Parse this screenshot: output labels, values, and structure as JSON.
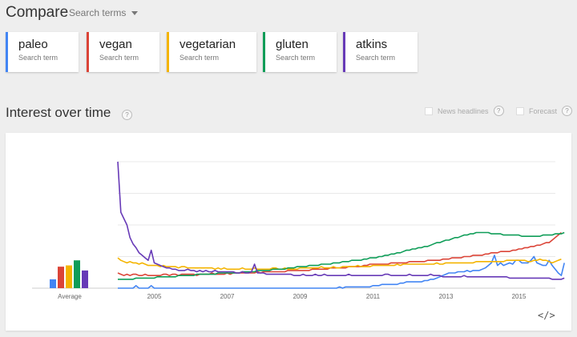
{
  "header": {
    "title": "Compare",
    "search_terms_label": "Search terms"
  },
  "terms": [
    {
      "term": "paleo",
      "sub": "Search term",
      "color": "#4285f4"
    },
    {
      "term": "vegan",
      "sub": "Search term",
      "color": "#db4437"
    },
    {
      "term": "vegetarian",
      "sub": "Search term",
      "color": "#f4b400"
    },
    {
      "term": "gluten",
      "sub": "Search term",
      "color": "#0f9d58"
    },
    {
      "term": "atkins",
      "sub": "Search term",
      "color": "#673ab7"
    }
  ],
  "section": {
    "title": "Interest over time",
    "help": "?",
    "news_label": "News headlines",
    "forecast_label": "Forecast",
    "embed_label": "</>"
  },
  "chart_data": {
    "type": "line",
    "x_start": 2004.0,
    "x_step": 0.0833,
    "xlim": [
      2004.0,
      2016.0
    ],
    "ylim": [
      0,
      100
    ],
    "grid": true,
    "x_ticks": [
      "2005",
      "2007",
      "2009",
      "2011",
      "2013",
      "2015"
    ],
    "x_tick_values": [
      2005,
      2007,
      2009,
      2011,
      2013,
      2015
    ],
    "average_label": "Average",
    "averages": [
      7,
      17,
      18,
      22,
      14
    ],
    "series": [
      {
        "name": "paleo",
        "values": [
          0,
          0,
          0,
          0,
          0,
          0,
          2,
          0,
          0,
          0,
          0,
          2,
          0,
          0,
          0,
          0,
          0,
          0,
          0,
          0,
          0,
          0,
          0,
          0,
          0,
          0,
          0,
          0,
          0,
          0,
          0,
          0,
          0,
          0,
          0,
          0,
          0,
          0,
          0,
          0,
          0,
          0,
          0,
          0,
          0,
          0,
          0,
          0,
          0,
          0,
          0,
          0,
          0,
          0,
          0,
          0,
          0,
          0,
          0,
          0,
          0,
          0,
          0,
          0,
          0,
          0,
          0,
          0,
          0,
          0,
          0,
          0,
          0,
          1,
          0,
          1,
          1,
          1,
          1,
          1,
          1,
          1,
          1,
          1,
          2,
          2,
          2,
          3,
          3,
          3,
          3,
          3,
          3,
          4,
          4,
          5,
          5,
          5,
          5,
          5,
          5,
          6,
          6,
          7,
          7,
          8,
          9,
          10,
          11,
          12,
          12,
          12,
          13,
          13,
          13,
          14,
          13,
          14,
          14,
          14,
          15,
          16,
          18,
          20,
          26,
          18,
          20,
          18,
          19,
          20,
          19,
          22,
          22,
          20,
          20,
          20,
          22,
          25,
          20,
          19,
          18,
          18,
          22,
          18,
          15,
          12,
          10,
          20
        ]
      },
      {
        "name": "vegan",
        "values": [
          12,
          11,
          10,
          11,
          10,
          11,
          11,
          10,
          10,
          11,
          10,
          10,
          10,
          10,
          10,
          11,
          11,
          10,
          11,
          11,
          10,
          11,
          11,
          11,
          11,
          11,
          10,
          11,
          11,
          11,
          11,
          12,
          11,
          11,
          11,
          11,
          12,
          11,
          12,
          12,
          12,
          12,
          12,
          12,
          12,
          12,
          13,
          12,
          13,
          13,
          13,
          13,
          13,
          13,
          13,
          13,
          14,
          14,
          14,
          14,
          14,
          14,
          14,
          14,
          15,
          15,
          15,
          15,
          15,
          15,
          16,
          16,
          16,
          16,
          16,
          16,
          17,
          17,
          17,
          17,
          17,
          18,
          18,
          19,
          19,
          19,
          19,
          19,
          19,
          19,
          20,
          20,
          20,
          20,
          20,
          20,
          21,
          21,
          21,
          21,
          21,
          21,
          22,
          22,
          22,
          22,
          22,
          23,
          23,
          23,
          24,
          24,
          24,
          24,
          25,
          25,
          25,
          26,
          26,
          26,
          26,
          27,
          27,
          28,
          28,
          28,
          29,
          29,
          29,
          29,
          30,
          30,
          31,
          31,
          32,
          32,
          33,
          33,
          34,
          34,
          35,
          36,
          36,
          38,
          40,
          42,
          44
        ]
      },
      {
        "name": "vegetarian",
        "values": [
          24,
          22,
          21,
          20,
          21,
          20,
          20,
          19,
          20,
          19,
          18,
          18,
          18,
          18,
          17,
          18,
          17,
          17,
          17,
          17,
          16,
          17,
          17,
          16,
          16,
          16,
          16,
          16,
          16,
          16,
          16,
          16,
          15,
          16,
          15,
          16,
          15,
          15,
          15,
          15,
          15,
          16,
          15,
          15,
          15,
          16,
          15,
          15,
          15,
          15,
          15,
          16,
          16,
          15,
          15,
          16,
          15,
          15,
          15,
          15,
          16,
          16,
          16,
          16,
          16,
          16,
          16,
          17,
          16,
          16,
          16,
          17,
          16,
          16,
          17,
          17,
          17,
          17,
          17,
          18,
          17,
          17,
          17,
          17,
          18,
          18,
          18,
          18,
          18,
          18,
          18,
          18,
          19,
          18,
          19,
          19,
          19,
          19,
          19,
          19,
          19,
          19,
          19,
          19,
          19,
          20,
          19,
          19,
          20,
          20,
          20,
          20,
          20,
          20,
          20,
          20,
          20,
          20,
          21,
          21,
          21,
          21,
          21,
          21,
          21,
          21,
          21,
          21,
          22,
          22,
          22,
          22,
          22,
          22,
          22,
          21,
          21,
          22,
          22,
          23,
          22,
          22,
          21,
          20,
          21,
          22,
          23
        ]
      },
      {
        "name": "gluten",
        "values": [
          7,
          7,
          7,
          7,
          7,
          7,
          8,
          8,
          8,
          8,
          8,
          8,
          8,
          9,
          9,
          9,
          9,
          9,
          9,
          9,
          10,
          10,
          10,
          10,
          10,
          10,
          11,
          11,
          11,
          11,
          11,
          11,
          11,
          12,
          12,
          12,
          12,
          12,
          12,
          12,
          12,
          13,
          13,
          13,
          13,
          13,
          14,
          14,
          14,
          14,
          14,
          15,
          15,
          15,
          15,
          15,
          16,
          16,
          16,
          17,
          17,
          17,
          17,
          18,
          18,
          18,
          18,
          19,
          19,
          19,
          19,
          20,
          20,
          20,
          21,
          21,
          21,
          22,
          22,
          22,
          22,
          23,
          23,
          24,
          24,
          24,
          25,
          25,
          26,
          26,
          27,
          27,
          28,
          28,
          29,
          30,
          30,
          31,
          31,
          32,
          32,
          33,
          33,
          34,
          35,
          36,
          36,
          37,
          38,
          38,
          39,
          40,
          40,
          41,
          42,
          42,
          43,
          43,
          44,
          44,
          44,
          44,
          44,
          43,
          43,
          43,
          43,
          42,
          42,
          42,
          42,
          42,
          42,
          41,
          41,
          41,
          41,
          41,
          41,
          41,
          42,
          42,
          42,
          42,
          43,
          43,
          43,
          44
        ]
      },
      {
        "name": "atkins",
        "values": [
          100,
          60,
          55,
          50,
          40,
          35,
          32,
          28,
          26,
          24,
          22,
          30,
          20,
          19,
          18,
          17,
          16,
          16,
          15,
          15,
          14,
          14,
          14,
          15,
          14,
          14,
          13,
          14,
          13,
          14,
          13,
          13,
          14,
          13,
          13,
          13,
          13,
          13,
          13,
          12,
          12,
          13,
          12,
          12,
          13,
          19,
          12,
          12,
          12,
          11,
          11,
          11,
          11,
          11,
          11,
          11,
          11,
          11,
          10,
          10,
          10,
          11,
          10,
          10,
          10,
          11,
          10,
          10,
          11,
          10,
          10,
          10,
          10,
          10,
          10,
          10,
          11,
          10,
          10,
          10,
          10,
          10,
          10,
          10,
          10,
          10,
          10,
          10,
          11,
          11,
          10,
          10,
          10,
          10,
          10,
          10,
          11,
          10,
          10,
          10,
          10,
          10,
          10,
          11,
          10,
          10,
          10,
          9,
          9,
          9,
          9,
          9,
          9,
          9,
          10,
          9,
          9,
          9,
          9,
          9,
          9,
          9,
          9,
          9,
          9,
          9,
          9,
          9,
          9,
          8,
          8,
          8,
          8,
          8,
          8,
          8,
          8,
          8,
          8,
          8,
          8,
          8,
          8,
          7,
          7,
          7,
          7,
          8
        ]
      }
    ]
  }
}
